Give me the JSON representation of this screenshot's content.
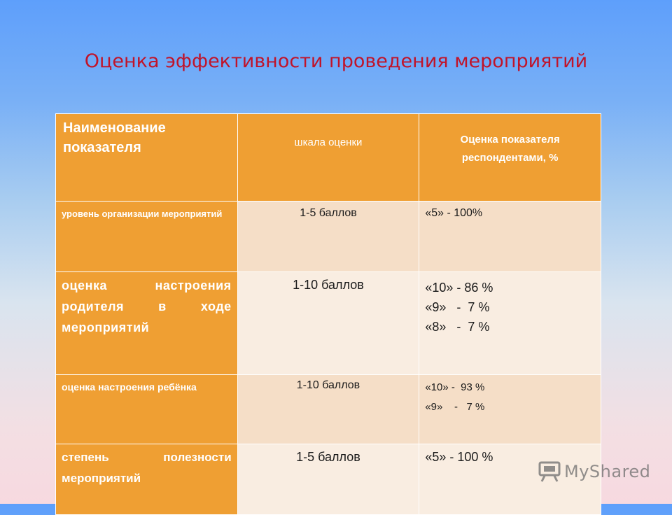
{
  "title": "Оценка эффективности проведения мероприятий",
  "table": {
    "headers": [
      "Наименование показателя",
      "шкала оценки",
      "Оценка показателя респондентами, %"
    ],
    "rows": [
      {
        "indicator": "уровень организации мероприятий",
        "scale": "1-5 баллов",
        "scores": [
          "«5» - 100%"
        ]
      },
      {
        "indicator": "оценка настроения родителя в ходе мероприятий",
        "scale": "1-10 баллов",
        "scores": [
          "«10» - 86 %",
          "«9»   -  7 %",
          "«8»   -  7 %"
        ]
      },
      {
        "indicator": "оценка настроения ребёнка",
        "scale": "1-10 баллов",
        "scores": [
          "«10» -  93 %",
          "«9»    -   7 %"
        ]
      },
      {
        "indicator": "степень полезности мероприятий",
        "scale": "1-5 баллов",
        "scores": [
          "«5» - 100 %"
        ]
      }
    ]
  },
  "watermark": {
    "text": "MyShared",
    "icon": "projector-icon"
  }
}
